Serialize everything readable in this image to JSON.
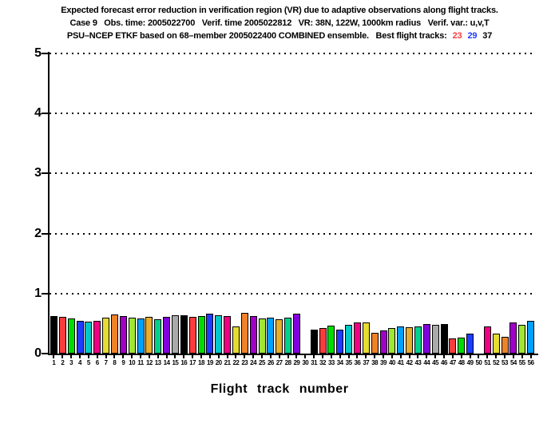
{
  "chart_data": {
    "type": "bar",
    "title_lines": {
      "line1": "Expected forecast error reduction in verification region (VR) due to adaptive observations along flight tracks.",
      "line2": "Case 9   Obs. time: 2005022700   Verif. time 2005022812   VR: 38N, 122W, 1000km radius   Verif. var.: u,v,T",
      "line3_prefix": "PSU–NCEP ETKF based on 68–member 2005022400 COMBINED ensemble.   Best flight tracks:",
      "best_tracks": [
        {
          "track": "23",
          "color": "#fa3c3c"
        },
        {
          "track": "29",
          "color": "#1e3cff"
        },
        {
          "track": "37",
          "color": "#000000"
        }
      ]
    },
    "xlabel": "Flight track number",
    "ylabel": "",
    "ylim": [
      0,
      5
    ],
    "yticks": [
      0,
      1,
      2,
      3,
      4,
      5
    ],
    "grid": "horizontal dotted lines at each labeled y level",
    "legend": "none",
    "categories": [
      1,
      2,
      3,
      4,
      5,
      6,
      7,
      8,
      9,
      10,
      11,
      12,
      13,
      14,
      15,
      16,
      17,
      18,
      19,
      20,
      21,
      22,
      23,
      24,
      25,
      26,
      27,
      28,
      29,
      30,
      31,
      32,
      33,
      34,
      35,
      36,
      37,
      38,
      39,
      40,
      41,
      42,
      43,
      44,
      45,
      46,
      47,
      48,
      49,
      50,
      51,
      52,
      53,
      54,
      55,
      56
    ],
    "values": [
      0.62,
      0.61,
      0.58,
      0.55,
      0.53,
      0.55,
      0.6,
      0.65,
      0.63,
      0.6,
      0.59,
      0.61,
      0.57,
      0.61,
      0.64,
      0.64,
      0.61,
      0.62,
      0.66,
      0.64,
      0.63,
      0.45,
      0.68,
      0.63,
      0.59,
      0.6,
      0.57,
      0.6,
      0.66,
      0,
      0.4,
      0.43,
      0.47,
      0.4,
      0.48,
      0.52,
      0.52,
      0.35,
      0.39,
      0.43,
      0.45,
      0.44,
      0.45,
      0.49,
      0.48,
      0.49,
      0.25,
      0.27,
      0.33,
      0,
      0.45,
      0.33,
      0.28,
      0.52,
      0.48,
      0.55
    ],
    "zero_height_tracks": [
      30,
      50
    ],
    "bar_color_cycle_grads": [
      "#000000",
      "#fa3c3c",
      "#00dc00",
      "#1e3cff",
      "#00c8c8",
      "#f00082",
      "#e6dc32",
      "#f08228",
      "#a000c8",
      "#a0e632",
      "#00a0ff",
      "#e6af2d",
      "#00d28c",
      "#8200dc",
      "#aaaaaa"
    ]
  }
}
